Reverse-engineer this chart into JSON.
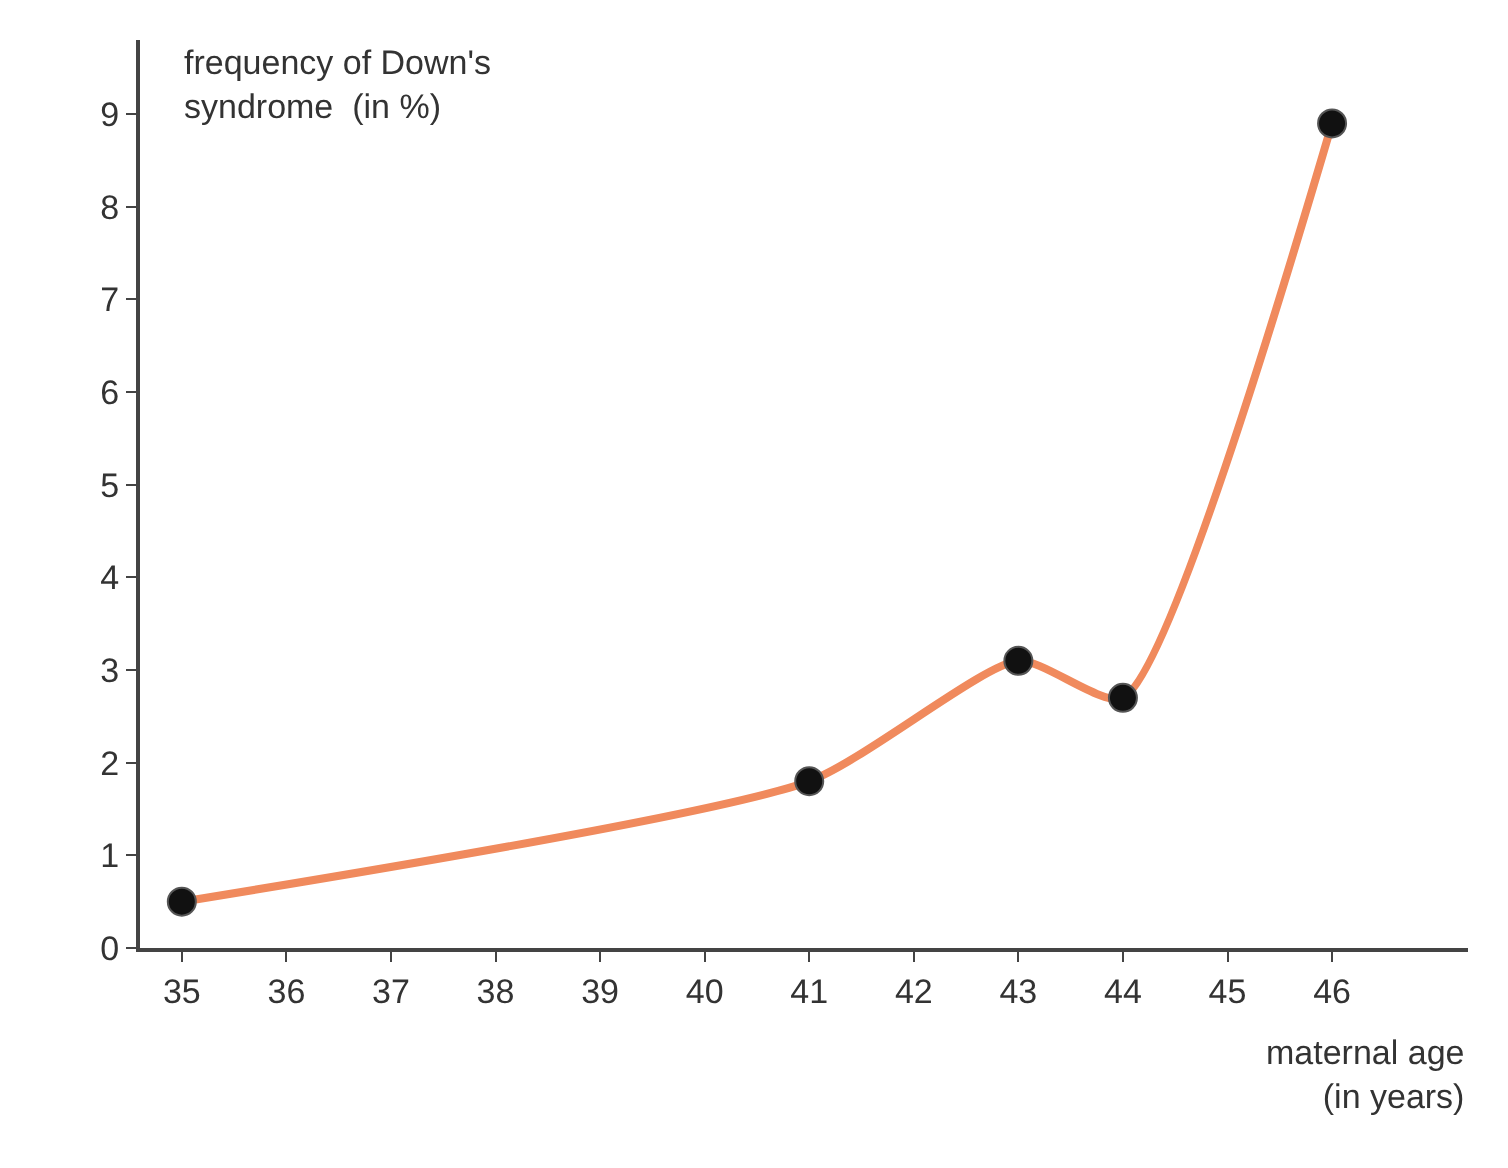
{
  "chart_data": {
    "type": "line",
    "ylabel": "frequency of Down's\nsyndrome  (in %)",
    "xlabel": "maternal age\n(in years)",
    "x": [
      35,
      41,
      43,
      44,
      46
    ],
    "series": [
      {
        "color": "#f08a5d",
        "values": [
          0.5,
          1.8,
          3.1,
          2.7,
          8.9
        ]
      }
    ],
    "xlim": [
      34.6,
      47.3
    ],
    "xticks": [
      35,
      36,
      37,
      38,
      39,
      40,
      41,
      42,
      43,
      44,
      45,
      46
    ],
    "ylim": [
      0,
      9.8
    ],
    "yticks": [
      0,
      1,
      2,
      3,
      4,
      5,
      6,
      7,
      8,
      9
    ],
    "legend": false,
    "marker": "circle",
    "line_style": "solid"
  }
}
